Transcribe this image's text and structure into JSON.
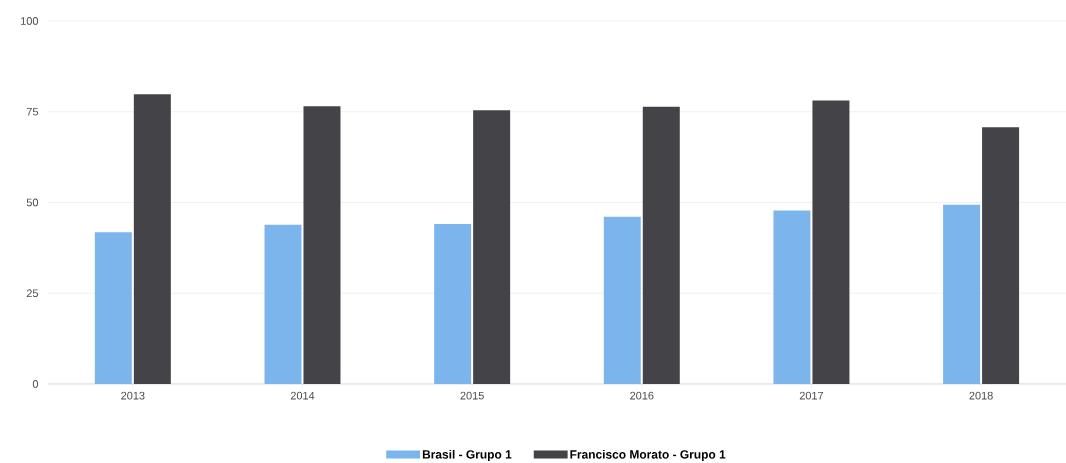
{
  "chart_data": {
    "type": "bar",
    "categories": [
      "2013",
      "2014",
      "2015",
      "2016",
      "2017",
      "2018"
    ],
    "series": [
      {
        "name": "Brasil - Grupo 1",
        "color": "#7cb5ec",
        "values": [
          41.8,
          43.9,
          44.1,
          46.1,
          47.8,
          49.4
        ]
      },
      {
        "name": "Francisco Morato - Grupo 1",
        "color": "#434348",
        "values": [
          79.8,
          76.5,
          75.4,
          76.4,
          78.1,
          70.7
        ]
      }
    ],
    "ylim": [
      0,
      100
    ],
    "yticks": [
      0,
      25,
      50,
      75,
      100
    ],
    "grid": "y",
    "legend": "bottom"
  }
}
